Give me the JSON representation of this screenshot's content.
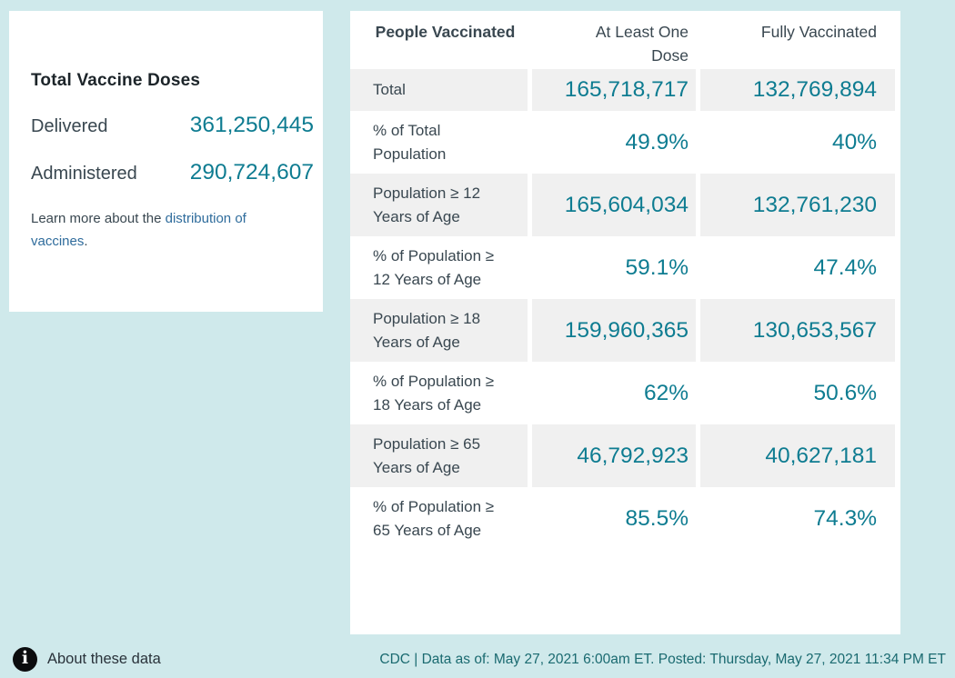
{
  "card": {
    "title": "Total Vaccine Doses",
    "doses": [
      {
        "label": "Delivered",
        "value": "361,250,445"
      },
      {
        "label": "Administered",
        "value": "290,724,607"
      }
    ],
    "learn_more": {
      "prefix": "Learn more about the ",
      "link_text": "distribution of vaccines",
      "suffix": "."
    }
  },
  "table": {
    "header": {
      "people": "People Vaccinated",
      "at_least_one": "At Least One Dose",
      "fully": "Fully Vaccinated"
    },
    "rows": [
      {
        "label": "Total",
        "at_least_one": "165,718,717",
        "fully": "132,769,894",
        "shaded": true
      },
      {
        "label": "% of Total Population",
        "at_least_one": "49.9%",
        "fully": "40%",
        "shaded": false
      },
      {
        "label": "Population ≥ 12 Years of Age",
        "at_least_one": "165,604,034",
        "fully": "132,761,230",
        "shaded": true
      },
      {
        "label": "% of Population ≥ 12 Years of Age",
        "at_least_one": "59.1%",
        "fully": "47.4%",
        "shaded": false
      },
      {
        "label": "Population ≥ 18 Years of Age",
        "at_least_one": "159,960,365",
        "fully": "130,653,567",
        "shaded": true
      },
      {
        "label": "% of Population ≥ 18 Years of Age",
        "at_least_one": "62%",
        "fully": "50.6%",
        "shaded": false
      },
      {
        "label": "Population ≥ 65 Years of Age",
        "at_least_one": "46,792,923",
        "fully": "40,627,181",
        "shaded": true
      },
      {
        "label": "% of Population ≥ 65 Years of Age",
        "at_least_one": "85.5%",
        "fully": "74.3%",
        "shaded": false
      }
    ]
  },
  "footer": {
    "info_glyph": "i",
    "about_label": "About these data",
    "source_line": "CDC | Data as of: May 27, 2021 6:00am ET. Posted: Thursday, May 27, 2021 11:34 PM ET"
  },
  "colors": {
    "background": "#cfe9eb",
    "accent_teal": "#0e7c91",
    "link_blue": "#2f6c9c",
    "shaded_row": "#f0f0f0"
  }
}
